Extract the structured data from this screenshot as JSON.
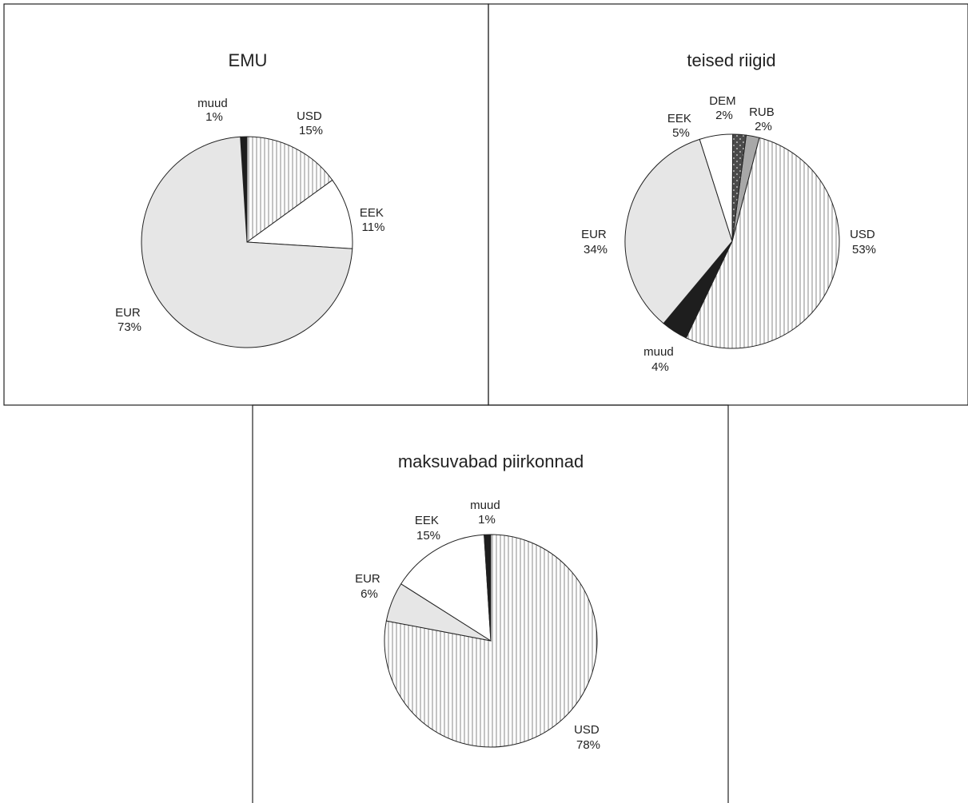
{
  "chart_data": [
    {
      "type": "pie",
      "title": "EMU",
      "slices": [
        {
          "label": "muud",
          "percent": "1%",
          "value": 1,
          "fill": "dark"
        },
        {
          "label": "USD",
          "percent": "15%",
          "value": 15,
          "fill": "vstripe"
        },
        {
          "label": "EEK",
          "percent": "11%",
          "value": 11,
          "fill": "white"
        },
        {
          "label": "EUR",
          "percent": "73%",
          "value": 73,
          "fill": "lightgray"
        }
      ]
    },
    {
      "type": "pie",
      "title": "teised riigid",
      "slices": [
        {
          "label": "RUB",
          "percent": "2%",
          "value": 2,
          "fill": "midgray"
        },
        {
          "label": "USD",
          "percent": "53%",
          "value": 53,
          "fill": "vstripe"
        },
        {
          "label": "muud",
          "percent": "4%",
          "value": 4,
          "fill": "dark"
        },
        {
          "label": "EUR",
          "percent": "34%",
          "value": 34,
          "fill": "lightgray"
        },
        {
          "label": "EEK",
          "percent": "5%",
          "value": 5,
          "fill": "white"
        },
        {
          "label": "DEM",
          "percent": "2%",
          "value": 2,
          "fill": "dotted"
        }
      ]
    },
    {
      "type": "pie",
      "title": "maksuvabad piirkonnad",
      "slices": [
        {
          "label": "USD",
          "percent": "78%",
          "value": 78,
          "fill": "vstripe"
        },
        {
          "label": "EUR",
          "percent": "6%",
          "value": 6,
          "fill": "lightgray"
        },
        {
          "label": "EEK",
          "percent": "15%",
          "value": 15,
          "fill": "white"
        },
        {
          "label": "muud",
          "percent": "1%",
          "value": 1,
          "fill": "dark"
        }
      ]
    }
  ],
  "colors": {
    "dark": "#1e1e1e",
    "lightgray": "#e6e6e6",
    "midgray": "#a8a8a8",
    "white": "#ffffff",
    "stripe_line": "#8a8a8a",
    "dotted_bg": "#4a4a4a",
    "border": "#222222"
  }
}
